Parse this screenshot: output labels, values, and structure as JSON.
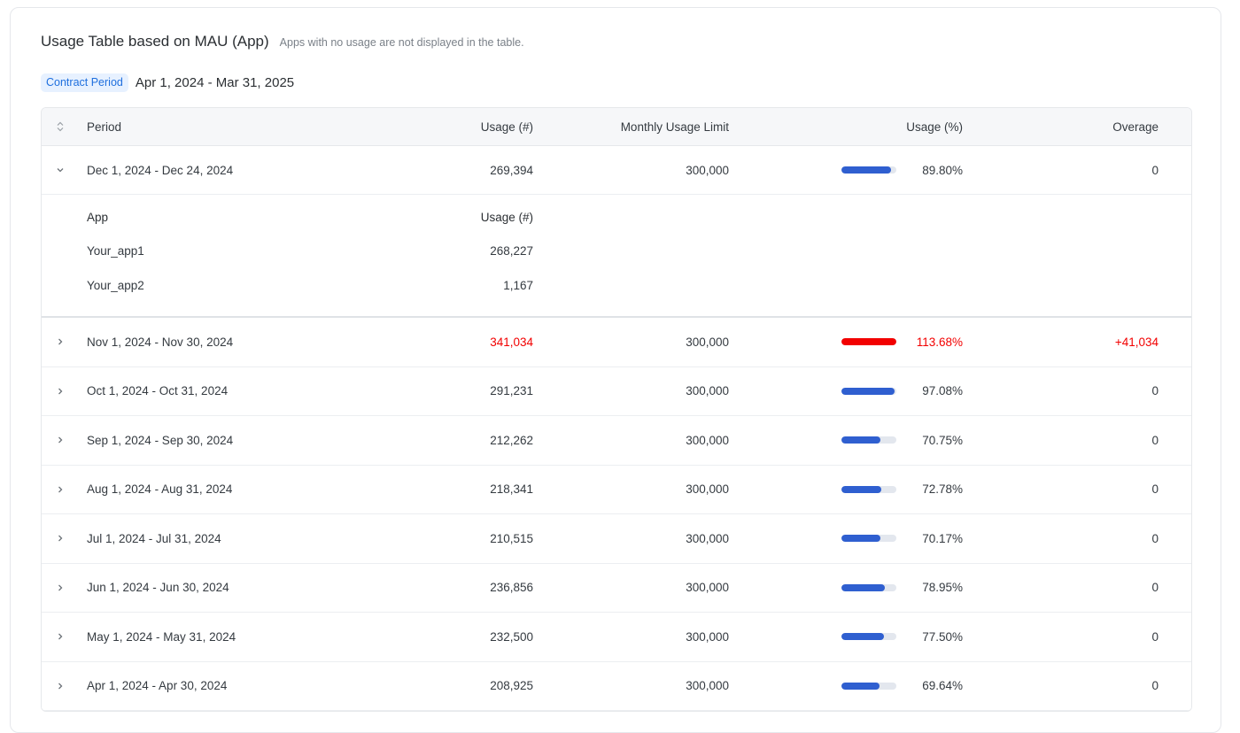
{
  "header": {
    "title": "Usage Table based on MAU (App)",
    "subtitle": "Apps with no usage are not displayed in the table."
  },
  "contract": {
    "badge": "Contract Period",
    "range": "Apr 1, 2024 - Mar 31, 2025"
  },
  "table": {
    "sort_icon": "sort-icon",
    "columns": {
      "period": "Period",
      "usage": "Usage (#)",
      "limit": "Monthly Usage Limit",
      "percent": "Usage (%)",
      "overage": "Overage"
    },
    "colors": {
      "normal_bar": "#2f5fd0",
      "over_bar": "#f20000",
      "over_text": "#f20000",
      "track": "#e3e7ee"
    },
    "rows": [
      {
        "period": "Dec 1, 2024 - Dec 24, 2024",
        "usage": "269,394",
        "limit": "300,000",
        "percent": "89.80%",
        "fill": 0.898,
        "overage": "0",
        "expanded": true,
        "over": false
      },
      {
        "period": "Nov 1, 2024 - Nov 30, 2024",
        "usage": "341,034",
        "limit": "300,000",
        "percent": "113.68%",
        "fill": 1.0,
        "overage": "+41,034",
        "expanded": false,
        "over": true
      },
      {
        "period": "Oct 1, 2024 - Oct 31, 2024",
        "usage": "291,231",
        "limit": "300,000",
        "percent": "97.08%",
        "fill": 0.9708,
        "overage": "0",
        "expanded": false,
        "over": false
      },
      {
        "period": "Sep 1, 2024 - Sep 30, 2024",
        "usage": "212,262",
        "limit": "300,000",
        "percent": "70.75%",
        "fill": 0.7075,
        "overage": "0",
        "expanded": false,
        "over": false
      },
      {
        "period": "Aug 1, 2024 - Aug 31, 2024",
        "usage": "218,341",
        "limit": "300,000",
        "percent": "72.78%",
        "fill": 0.7278,
        "overage": "0",
        "expanded": false,
        "over": false
      },
      {
        "period": "Jul 1, 2024 - Jul 31, 2024",
        "usage": "210,515",
        "limit": "300,000",
        "percent": "70.17%",
        "fill": 0.7017,
        "overage": "0",
        "expanded": false,
        "over": false
      },
      {
        "period": "Jun 1, 2024 - Jun 30, 2024",
        "usage": "236,856",
        "limit": "300,000",
        "percent": "78.95%",
        "fill": 0.7895,
        "overage": "0",
        "expanded": false,
        "over": false
      },
      {
        "period": "May 1, 2024 - May 31, 2024",
        "usage": "232,500",
        "limit": "300,000",
        "percent": "77.50%",
        "fill": 0.775,
        "overage": "0",
        "expanded": false,
        "over": false
      },
      {
        "period": "Apr 1, 2024 - Apr 30, 2024",
        "usage": "208,925",
        "limit": "300,000",
        "percent": "69.64%",
        "fill": 0.6964,
        "overage": "0",
        "expanded": false,
        "over": false
      }
    ],
    "apps": {
      "header_app": "App",
      "header_usage": "Usage (#)",
      "items": [
        {
          "name": "Your_app1",
          "usage": "268,227"
        },
        {
          "name": "Your_app2",
          "usage": "1,167"
        }
      ]
    }
  }
}
